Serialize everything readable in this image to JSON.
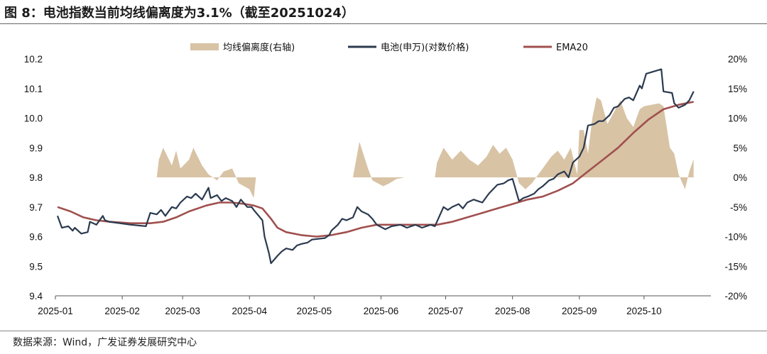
{
  "header": {
    "title": "图 8：电池指数当前均线偏离度为3.1%（截至20251024）"
  },
  "footer": {
    "source": "数据来源：Wind，广发证券发展研究中心"
  },
  "colors": {
    "deviation_fill": "#d8c3a5",
    "price_line": "#2b3a4f",
    "ema_line": "#a0504e"
  },
  "chart_data": {
    "type": "line",
    "title": "",
    "legend": [
      "均线偏离度(右轴)",
      "电池(申万)(对数价格)",
      "EMA20"
    ],
    "legend_position": "top",
    "x_ticks": [
      "2025-01",
      "2025-02",
      "2025-03",
      "2025-04",
      "2025-05",
      "2025-06",
      "2025-07",
      "2025-08",
      "2025-09",
      "2025-10"
    ],
    "y_left": {
      "ticks": [
        "9.4",
        "9.5",
        "9.6",
        "9.7",
        "9.8",
        "9.9",
        "10.0",
        "10.1",
        "10.2"
      ],
      "ylim": [
        9.4,
        10.2
      ]
    },
    "y_right": {
      "ticks": [
        "-20%",
        "-15%",
        "-10%",
        "-5%",
        "0%",
        "5%",
        "10%",
        "15%",
        "20%"
      ],
      "ylim": [
        -20,
        20
      ]
    },
    "grid": false,
    "series": [
      {
        "name": "均线偏离度(右轴)",
        "type": "area",
        "axis": "right",
        "points": [
          [
            "2025-02-17",
            0
          ],
          [
            "2025-02-18",
            3
          ],
          [
            "2025-02-20",
            5
          ],
          [
            "2025-02-24",
            2
          ],
          [
            "2025-02-26",
            4.5
          ],
          [
            "2025-02-28",
            1.5
          ],
          [
            "2025-03-04",
            3
          ],
          [
            "2025-03-06",
            5
          ],
          [
            "2025-03-10",
            2
          ],
          [
            "2025-03-13",
            0.5
          ],
          [
            "2025-03-17",
            -0.5
          ],
          [
            "2025-03-20",
            1
          ],
          [
            "2025-03-24",
            1.5
          ],
          [
            "2025-03-27",
            -1
          ],
          [
            "2025-04-01",
            -2
          ],
          [
            "2025-04-03",
            -3.5
          ],
          [
            "2025-04-04",
            0
          ],
          [
            "2025-05-19",
            0
          ],
          [
            "2025-05-20",
            2
          ],
          [
            "2025-05-22",
            6
          ],
          [
            "2025-05-26",
            1.5
          ],
          [
            "2025-05-28",
            -0.5
          ],
          [
            "2025-06-02",
            -1.5
          ],
          [
            "2025-06-05",
            -1
          ],
          [
            "2025-06-08",
            -0.3
          ],
          [
            "2025-06-12",
            0
          ],
          [
            "2025-06-26",
            0
          ],
          [
            "2025-06-27",
            2.5
          ],
          [
            "2025-06-30",
            5
          ],
          [
            "2025-07-04",
            3
          ],
          [
            "2025-07-08",
            4.5
          ],
          [
            "2025-07-12",
            3
          ],
          [
            "2025-07-16",
            2
          ],
          [
            "2025-07-20",
            3.5
          ],
          [
            "2025-07-23",
            5.5
          ],
          [
            "2025-07-26",
            4
          ],
          [
            "2025-07-29",
            5
          ],
          [
            "2025-08-01",
            3
          ],
          [
            "2025-08-04",
            -1
          ],
          [
            "2025-08-07",
            -2
          ],
          [
            "2025-08-10",
            -1
          ],
          [
            "2025-08-13",
            0.5
          ],
          [
            "2025-08-16",
            2
          ],
          [
            "2025-08-19",
            3.5
          ],
          [
            "2025-08-22",
            4.5
          ],
          [
            "2025-08-25",
            3
          ],
          [
            "2025-08-28",
            5
          ],
          [
            "2025-08-31",
            0.5
          ],
          [
            "2025-09-01",
            8
          ],
          [
            "2025-09-03",
            8
          ],
          [
            "2025-09-05",
            4
          ],
          [
            "2025-09-07",
            10
          ],
          [
            "2025-09-09",
            13.5
          ],
          [
            "2025-09-11",
            13
          ],
          [
            "2025-09-14",
            9
          ],
          [
            "2025-09-17",
            11
          ],
          [
            "2025-09-20",
            13
          ],
          [
            "2025-09-23",
            10
          ],
          [
            "2025-09-26",
            8.5
          ],
          [
            "2025-09-29",
            11.5
          ],
          [
            "2025-10-01",
            12
          ],
          [
            "2025-10-08",
            12.5
          ],
          [
            "2025-10-10",
            12
          ],
          [
            "2025-10-13",
            5
          ],
          [
            "2025-10-15",
            4
          ],
          [
            "2025-10-17",
            0.5
          ],
          [
            "2025-10-20",
            -2
          ],
          [
            "2025-10-22",
            1
          ],
          [
            "2025-10-24",
            3.1
          ]
        ]
      },
      {
        "name": "电池(申万)(对数价格)",
        "axis": "left",
        "points": [
          [
            "2025-01-02",
            9.67
          ],
          [
            "2025-01-04",
            9.63
          ],
          [
            "2025-01-07",
            9.635
          ],
          [
            "2025-01-09",
            9.62
          ],
          [
            "2025-01-10",
            9.63
          ],
          [
            "2025-01-13",
            9.61
          ],
          [
            "2025-01-16",
            9.615
          ],
          [
            "2025-01-17",
            9.65
          ],
          [
            "2025-01-20",
            9.64
          ],
          [
            "2025-01-23",
            9.67
          ],
          [
            "2025-01-24",
            9.655
          ],
          [
            "2025-01-26",
            9.65
          ],
          [
            "2025-02-05",
            9.64
          ],
          [
            "2025-02-12",
            9.635
          ],
          [
            "2025-02-14",
            9.68
          ],
          [
            "2025-02-17",
            9.675
          ],
          [
            "2025-02-19",
            9.69
          ],
          [
            "2025-02-21",
            9.67
          ],
          [
            "2025-02-24",
            9.7
          ],
          [
            "2025-02-26",
            9.695
          ],
          [
            "2025-02-28",
            9.715
          ],
          [
            "2025-03-03",
            9.735
          ],
          [
            "2025-03-05",
            9.73
          ],
          [
            "2025-03-07",
            9.745
          ],
          [
            "2025-03-10",
            9.725
          ],
          [
            "2025-03-13",
            9.765
          ],
          [
            "2025-03-14",
            9.73
          ],
          [
            "2025-03-17",
            9.74
          ],
          [
            "2025-03-19",
            9.72
          ],
          [
            "2025-03-21",
            9.73
          ],
          [
            "2025-03-24",
            9.72
          ],
          [
            "2025-03-26",
            9.7
          ],
          [
            "2025-03-28",
            9.725
          ],
          [
            "2025-03-31",
            9.7
          ],
          [
            "2025-04-02",
            9.7
          ],
          [
            "2025-04-03",
            9.69
          ],
          [
            "2025-04-07",
            9.655
          ],
          [
            "2025-04-08",
            9.6
          ],
          [
            "2025-04-10",
            9.545
          ],
          [
            "2025-04-11",
            9.51
          ],
          [
            "2025-04-14",
            9.535
          ],
          [
            "2025-04-16",
            9.55
          ],
          [
            "2025-04-18",
            9.56
          ],
          [
            "2025-04-21",
            9.555
          ],
          [
            "2025-04-23",
            9.57
          ],
          [
            "2025-04-25",
            9.575
          ],
          [
            "2025-04-28",
            9.58
          ],
          [
            "2025-04-30",
            9.59
          ],
          [
            "2025-05-06",
            9.595
          ],
          [
            "2025-05-08",
            9.605
          ],
          [
            "2025-05-09",
            9.62
          ],
          [
            "2025-05-12",
            9.64
          ],
          [
            "2025-05-14",
            9.66
          ],
          [
            "2025-05-16",
            9.655
          ],
          [
            "2025-05-19",
            9.665
          ],
          [
            "2025-05-21",
            9.7
          ],
          [
            "2025-05-23",
            9.685
          ],
          [
            "2025-05-26",
            9.675
          ],
          [
            "2025-05-28",
            9.66
          ],
          [
            "2025-05-30",
            9.64
          ],
          [
            "2025-06-03",
            9.625
          ],
          [
            "2025-06-06",
            9.635
          ],
          [
            "2025-06-10",
            9.64
          ],
          [
            "2025-06-13",
            9.63
          ],
          [
            "2025-06-17",
            9.64
          ],
          [
            "2025-06-20",
            9.63
          ],
          [
            "2025-06-24",
            9.64
          ],
          [
            "2025-06-26",
            9.635
          ],
          [
            "2025-06-30",
            9.7
          ],
          [
            "2025-07-02",
            9.69
          ],
          [
            "2025-07-04",
            9.7
          ],
          [
            "2025-07-07",
            9.71
          ],
          [
            "2025-07-09",
            9.695
          ],
          [
            "2025-07-11",
            9.715
          ],
          [
            "2025-07-14",
            9.725
          ],
          [
            "2025-07-16",
            9.72
          ],
          [
            "2025-07-18",
            9.715
          ],
          [
            "2025-07-21",
            9.745
          ],
          [
            "2025-07-23",
            9.76
          ],
          [
            "2025-07-25",
            9.775
          ],
          [
            "2025-07-28",
            9.78
          ],
          [
            "2025-07-30",
            9.79
          ],
          [
            "2025-08-01",
            9.795
          ],
          [
            "2025-08-04",
            9.72
          ],
          [
            "2025-08-06",
            9.73
          ],
          [
            "2025-08-08",
            9.735
          ],
          [
            "2025-08-11",
            9.745
          ],
          [
            "2025-08-13",
            9.76
          ],
          [
            "2025-08-15",
            9.77
          ],
          [
            "2025-08-18",
            9.79
          ],
          [
            "2025-08-20",
            9.795
          ],
          [
            "2025-08-22",
            9.81
          ],
          [
            "2025-08-25",
            9.82
          ],
          [
            "2025-08-27",
            9.8
          ],
          [
            "2025-08-29",
            9.85
          ],
          [
            "2025-09-01",
            9.87
          ],
          [
            "2025-09-03",
            9.9
          ],
          [
            "2025-09-05",
            9.975
          ],
          [
            "2025-09-08",
            9.98
          ],
          [
            "2025-09-10",
            9.99
          ],
          [
            "2025-09-12",
            9.99
          ],
          [
            "2025-09-15",
            10.01
          ],
          [
            "2025-09-17",
            10.035
          ],
          [
            "2025-09-19",
            10.04
          ],
          [
            "2025-09-22",
            10.065
          ],
          [
            "2025-09-24",
            10.07
          ],
          [
            "2025-09-26",
            10.06
          ],
          [
            "2025-09-29",
            10.11
          ],
          [
            "2025-09-30",
            10.1
          ],
          [
            "2025-10-02",
            10.15
          ],
          [
            "2025-10-09",
            10.165
          ],
          [
            "2025-10-10",
            10.09
          ],
          [
            "2025-10-14",
            10.085
          ],
          [
            "2025-10-15",
            10.05
          ],
          [
            "2025-10-17",
            10.035
          ],
          [
            "2025-10-20",
            10.045
          ],
          [
            "2025-10-22",
            10.06
          ],
          [
            "2025-10-24",
            10.09
          ]
        ]
      },
      {
        "name": "EMA20",
        "axis": "left",
        "points": [
          [
            "2025-01-02",
            9.7
          ],
          [
            "2025-01-08",
            9.685
          ],
          [
            "2025-01-14",
            9.665
          ],
          [
            "2025-01-20",
            9.655
          ],
          [
            "2025-01-26",
            9.65
          ],
          [
            "2025-02-05",
            9.645
          ],
          [
            "2025-02-14",
            9.645
          ],
          [
            "2025-02-20",
            9.65
          ],
          [
            "2025-02-26",
            9.665
          ],
          [
            "2025-03-04",
            9.685
          ],
          [
            "2025-03-12",
            9.705
          ],
          [
            "2025-03-18",
            9.715
          ],
          [
            "2025-03-24",
            9.715
          ],
          [
            "2025-03-30",
            9.71
          ],
          [
            "2025-04-03",
            9.705
          ],
          [
            "2025-04-07",
            9.695
          ],
          [
            "2025-04-11",
            9.66
          ],
          [
            "2025-04-14",
            9.63
          ],
          [
            "2025-04-18",
            9.615
          ],
          [
            "2025-04-25",
            9.605
          ],
          [
            "2025-05-02",
            9.6
          ],
          [
            "2025-05-09",
            9.605
          ],
          [
            "2025-05-16",
            9.615
          ],
          [
            "2025-05-23",
            9.63
          ],
          [
            "2025-05-30",
            9.64
          ],
          [
            "2025-06-06",
            9.64
          ],
          [
            "2025-06-13",
            9.64
          ],
          [
            "2025-06-20",
            9.64
          ],
          [
            "2025-06-27",
            9.64
          ],
          [
            "2025-07-04",
            9.65
          ],
          [
            "2025-07-11",
            9.665
          ],
          [
            "2025-07-18",
            9.68
          ],
          [
            "2025-07-25",
            9.695
          ],
          [
            "2025-08-01",
            9.71
          ],
          [
            "2025-08-08",
            9.725
          ],
          [
            "2025-08-15",
            9.735
          ],
          [
            "2025-08-22",
            9.755
          ],
          [
            "2025-08-29",
            9.78
          ],
          [
            "2025-09-05",
            9.82
          ],
          [
            "2025-09-12",
            9.86
          ],
          [
            "2025-09-19",
            9.9
          ],
          [
            "2025-09-26",
            9.95
          ],
          [
            "2025-10-03",
            9.995
          ],
          [
            "2025-10-10",
            10.03
          ],
          [
            "2025-10-17",
            10.045
          ],
          [
            "2025-10-24",
            10.055
          ]
        ]
      }
    ]
  }
}
